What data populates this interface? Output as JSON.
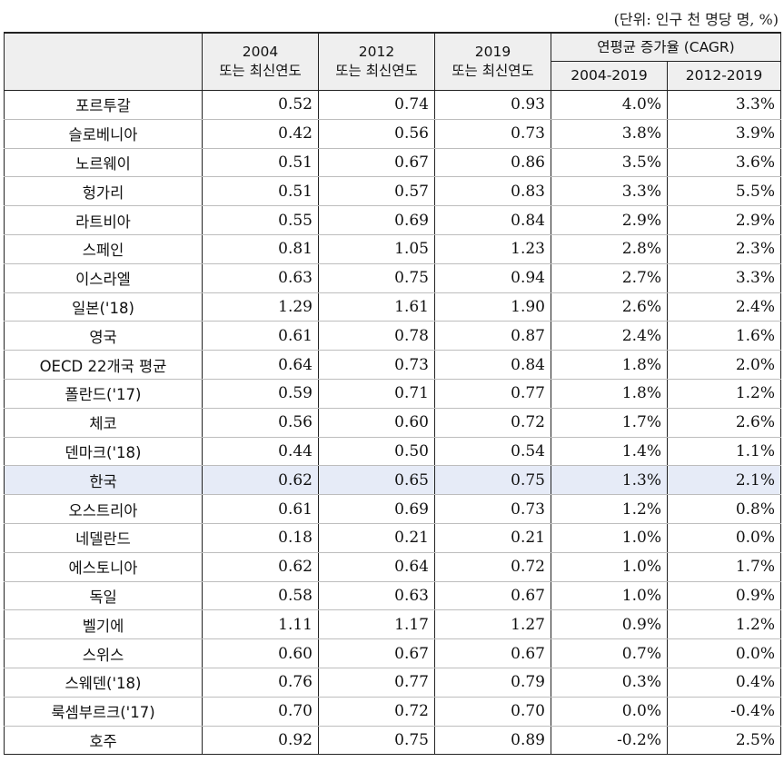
{
  "unit_note": "(단위: 인구 천 명당 명, %)",
  "headers": {
    "y2004_line1": "2004",
    "y2004_line2": "또는 최신연도",
    "y2012_line1": "2012",
    "y2012_line2": "또는 최신연도",
    "y2019_line1": "2019",
    "y2019_line2": "또는 최신연도",
    "cagr": "연평균 증가율 (CAGR)",
    "cagr_2004_2019": "2004-2019",
    "cagr_2012_2019": "2012-2019"
  },
  "rows": [
    {
      "country": "포르투갈",
      "v2004": "0.52",
      "v2012": "0.74",
      "v2019": "0.93",
      "g1": "4.0%",
      "g2": "3.3%"
    },
    {
      "country": "슬로베니아",
      "v2004": "0.42",
      "v2012": "0.56",
      "v2019": "0.73",
      "g1": "3.8%",
      "g2": "3.9%"
    },
    {
      "country": "노르웨이",
      "v2004": "0.51",
      "v2012": "0.67",
      "v2019": "0.86",
      "g1": "3.5%",
      "g2": "3.6%"
    },
    {
      "country": "헝가리",
      "v2004": "0.51",
      "v2012": "0.57",
      "v2019": "0.83",
      "g1": "3.3%",
      "g2": "5.5%"
    },
    {
      "country": "라트비아",
      "v2004": "0.55",
      "v2012": "0.69",
      "v2019": "0.84",
      "g1": "2.9%",
      "g2": "2.9%"
    },
    {
      "country": "스페인",
      "v2004": "0.81",
      "v2012": "1.05",
      "v2019": "1.23",
      "g1": "2.8%",
      "g2": "2.3%"
    },
    {
      "country": "이스라엘",
      "v2004": "0.63",
      "v2012": "0.75",
      "v2019": "0.94",
      "g1": "2.7%",
      "g2": "3.3%"
    },
    {
      "country": "일본('18)",
      "v2004": "1.29",
      "v2012": "1.61",
      "v2019": "1.90",
      "g1": "2.6%",
      "g2": "2.4%"
    },
    {
      "country": "영국",
      "v2004": "0.61",
      "v2012": "0.78",
      "v2019": "0.87",
      "g1": "2.4%",
      "g2": "1.6%"
    },
    {
      "country": "OECD 22개국 평균",
      "v2004": "0.64",
      "v2012": "0.73",
      "v2019": "0.84",
      "g1": "1.8%",
      "g2": "2.0%"
    },
    {
      "country": "폴란드('17)",
      "v2004": "0.59",
      "v2012": "0.71",
      "v2019": "0.77",
      "g1": "1.8%",
      "g2": "1.2%"
    },
    {
      "country": "체코",
      "v2004": "0.56",
      "v2012": "0.60",
      "v2019": "0.72",
      "g1": "1.7%",
      "g2": "2.6%"
    },
    {
      "country": "덴마크('18)",
      "v2004": "0.44",
      "v2012": "0.50",
      "v2019": "0.54",
      "g1": "1.4%",
      "g2": "1.1%"
    },
    {
      "country": "한국",
      "v2004": "0.62",
      "v2012": "0.65",
      "v2019": "0.75",
      "g1": "1.3%",
      "g2": "2.1%",
      "highlight": true
    },
    {
      "country": "오스트리아",
      "v2004": "0.61",
      "v2012": "0.69",
      "v2019": "0.73",
      "g1": "1.2%",
      "g2": "0.8%"
    },
    {
      "country": "네델란드",
      "v2004": "0.18",
      "v2012": "0.21",
      "v2019": "0.21",
      "g1": "1.0%",
      "g2": "0.0%"
    },
    {
      "country": "에스토니아",
      "v2004": "0.62",
      "v2012": "0.64",
      "v2019": "0.72",
      "g1": "1.0%",
      "g2": "1.7%"
    },
    {
      "country": "독일",
      "v2004": "0.58",
      "v2012": "0.63",
      "v2019": "0.67",
      "g1": "1.0%",
      "g2": "0.9%"
    },
    {
      "country": "벨기에",
      "v2004": "1.11",
      "v2012": "1.17",
      "v2019": "1.27",
      "g1": "0.9%",
      "g2": "1.2%"
    },
    {
      "country": "스위스",
      "v2004": "0.60",
      "v2012": "0.67",
      "v2019": "0.67",
      "g1": "0.7%",
      "g2": "0.0%"
    },
    {
      "country": "스웨덴('18)",
      "v2004": "0.76",
      "v2012": "0.77",
      "v2019": "0.79",
      "g1": "0.3%",
      "g2": "0.4%"
    },
    {
      "country": "룩셈부르크('17)",
      "v2004": "0.70",
      "v2012": "0.72",
      "v2019": "0.70",
      "g1": "0.0%",
      "g2": "-0.4%"
    },
    {
      "country": "호주",
      "v2004": "0.92",
      "v2012": "0.75",
      "v2019": "0.89",
      "g1": "-0.2%",
      "g2": "2.5%"
    }
  ]
}
